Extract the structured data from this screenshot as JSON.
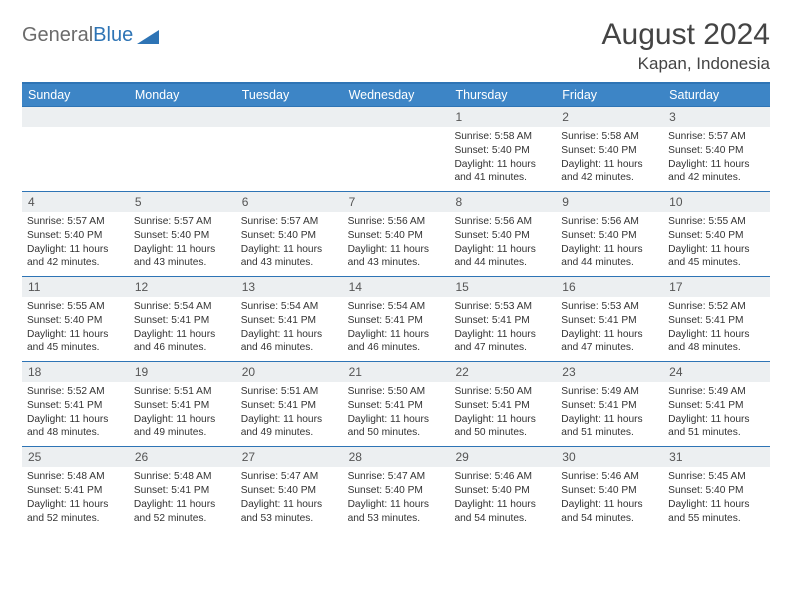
{
  "logo": {
    "part1": "General",
    "part2": "Blue"
  },
  "title": "August 2024",
  "location": "Kapan, Indonesia",
  "colors": {
    "headerBar": "#3d85c6",
    "borderTop": "#2e74b5",
    "dayNumBg": "#eceff1",
    "text": "#333333",
    "logoGray": "#6b6b6b",
    "logoBlue": "#2e74b5"
  },
  "weekdays": [
    "Sunday",
    "Monday",
    "Tuesday",
    "Wednesday",
    "Thursday",
    "Friday",
    "Saturday"
  ],
  "weeks": [
    {
      "nums": [
        "",
        "",
        "",
        "",
        "1",
        "2",
        "3"
      ],
      "info": [
        null,
        null,
        null,
        null,
        {
          "sunrise": "Sunrise: 5:58 AM",
          "sunset": "Sunset: 5:40 PM",
          "day1": "Daylight: 11 hours",
          "day2": "and 41 minutes."
        },
        {
          "sunrise": "Sunrise: 5:58 AM",
          "sunset": "Sunset: 5:40 PM",
          "day1": "Daylight: 11 hours",
          "day2": "and 42 minutes."
        },
        {
          "sunrise": "Sunrise: 5:57 AM",
          "sunset": "Sunset: 5:40 PM",
          "day1": "Daylight: 11 hours",
          "day2": "and 42 minutes."
        }
      ]
    },
    {
      "nums": [
        "4",
        "5",
        "6",
        "7",
        "8",
        "9",
        "10"
      ],
      "info": [
        {
          "sunrise": "Sunrise: 5:57 AM",
          "sunset": "Sunset: 5:40 PM",
          "day1": "Daylight: 11 hours",
          "day2": "and 42 minutes."
        },
        {
          "sunrise": "Sunrise: 5:57 AM",
          "sunset": "Sunset: 5:40 PM",
          "day1": "Daylight: 11 hours",
          "day2": "and 43 minutes."
        },
        {
          "sunrise": "Sunrise: 5:57 AM",
          "sunset": "Sunset: 5:40 PM",
          "day1": "Daylight: 11 hours",
          "day2": "and 43 minutes."
        },
        {
          "sunrise": "Sunrise: 5:56 AM",
          "sunset": "Sunset: 5:40 PM",
          "day1": "Daylight: 11 hours",
          "day2": "and 43 minutes."
        },
        {
          "sunrise": "Sunrise: 5:56 AM",
          "sunset": "Sunset: 5:40 PM",
          "day1": "Daylight: 11 hours",
          "day2": "and 44 minutes."
        },
        {
          "sunrise": "Sunrise: 5:56 AM",
          "sunset": "Sunset: 5:40 PM",
          "day1": "Daylight: 11 hours",
          "day2": "and 44 minutes."
        },
        {
          "sunrise": "Sunrise: 5:55 AM",
          "sunset": "Sunset: 5:40 PM",
          "day1": "Daylight: 11 hours",
          "day2": "and 45 minutes."
        }
      ]
    },
    {
      "nums": [
        "11",
        "12",
        "13",
        "14",
        "15",
        "16",
        "17"
      ],
      "info": [
        {
          "sunrise": "Sunrise: 5:55 AM",
          "sunset": "Sunset: 5:40 PM",
          "day1": "Daylight: 11 hours",
          "day2": "and 45 minutes."
        },
        {
          "sunrise": "Sunrise: 5:54 AM",
          "sunset": "Sunset: 5:41 PM",
          "day1": "Daylight: 11 hours",
          "day2": "and 46 minutes."
        },
        {
          "sunrise": "Sunrise: 5:54 AM",
          "sunset": "Sunset: 5:41 PM",
          "day1": "Daylight: 11 hours",
          "day2": "and 46 minutes."
        },
        {
          "sunrise": "Sunrise: 5:54 AM",
          "sunset": "Sunset: 5:41 PM",
          "day1": "Daylight: 11 hours",
          "day2": "and 46 minutes."
        },
        {
          "sunrise": "Sunrise: 5:53 AM",
          "sunset": "Sunset: 5:41 PM",
          "day1": "Daylight: 11 hours",
          "day2": "and 47 minutes."
        },
        {
          "sunrise": "Sunrise: 5:53 AM",
          "sunset": "Sunset: 5:41 PM",
          "day1": "Daylight: 11 hours",
          "day2": "and 47 minutes."
        },
        {
          "sunrise": "Sunrise: 5:52 AM",
          "sunset": "Sunset: 5:41 PM",
          "day1": "Daylight: 11 hours",
          "day2": "and 48 minutes."
        }
      ]
    },
    {
      "nums": [
        "18",
        "19",
        "20",
        "21",
        "22",
        "23",
        "24"
      ],
      "info": [
        {
          "sunrise": "Sunrise: 5:52 AM",
          "sunset": "Sunset: 5:41 PM",
          "day1": "Daylight: 11 hours",
          "day2": "and 48 minutes."
        },
        {
          "sunrise": "Sunrise: 5:51 AM",
          "sunset": "Sunset: 5:41 PM",
          "day1": "Daylight: 11 hours",
          "day2": "and 49 minutes."
        },
        {
          "sunrise": "Sunrise: 5:51 AM",
          "sunset": "Sunset: 5:41 PM",
          "day1": "Daylight: 11 hours",
          "day2": "and 49 minutes."
        },
        {
          "sunrise": "Sunrise: 5:50 AM",
          "sunset": "Sunset: 5:41 PM",
          "day1": "Daylight: 11 hours",
          "day2": "and 50 minutes."
        },
        {
          "sunrise": "Sunrise: 5:50 AM",
          "sunset": "Sunset: 5:41 PM",
          "day1": "Daylight: 11 hours",
          "day2": "and 50 minutes."
        },
        {
          "sunrise": "Sunrise: 5:49 AM",
          "sunset": "Sunset: 5:41 PM",
          "day1": "Daylight: 11 hours",
          "day2": "and 51 minutes."
        },
        {
          "sunrise": "Sunrise: 5:49 AM",
          "sunset": "Sunset: 5:41 PM",
          "day1": "Daylight: 11 hours",
          "day2": "and 51 minutes."
        }
      ]
    },
    {
      "nums": [
        "25",
        "26",
        "27",
        "28",
        "29",
        "30",
        "31"
      ],
      "info": [
        {
          "sunrise": "Sunrise: 5:48 AM",
          "sunset": "Sunset: 5:41 PM",
          "day1": "Daylight: 11 hours",
          "day2": "and 52 minutes."
        },
        {
          "sunrise": "Sunrise: 5:48 AM",
          "sunset": "Sunset: 5:41 PM",
          "day1": "Daylight: 11 hours",
          "day2": "and 52 minutes."
        },
        {
          "sunrise": "Sunrise: 5:47 AM",
          "sunset": "Sunset: 5:40 PM",
          "day1": "Daylight: 11 hours",
          "day2": "and 53 minutes."
        },
        {
          "sunrise": "Sunrise: 5:47 AM",
          "sunset": "Sunset: 5:40 PM",
          "day1": "Daylight: 11 hours",
          "day2": "and 53 minutes."
        },
        {
          "sunrise": "Sunrise: 5:46 AM",
          "sunset": "Sunset: 5:40 PM",
          "day1": "Daylight: 11 hours",
          "day2": "and 54 minutes."
        },
        {
          "sunrise": "Sunrise: 5:46 AM",
          "sunset": "Sunset: 5:40 PM",
          "day1": "Daylight: 11 hours",
          "day2": "and 54 minutes."
        },
        {
          "sunrise": "Sunrise: 5:45 AM",
          "sunset": "Sunset: 5:40 PM",
          "day1": "Daylight: 11 hours",
          "day2": "and 55 minutes."
        }
      ]
    }
  ]
}
